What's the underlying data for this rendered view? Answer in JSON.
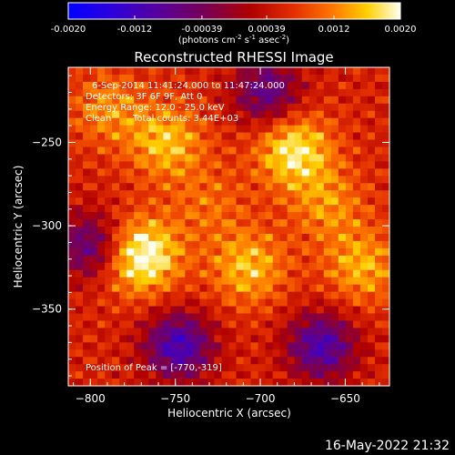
{
  "chart_data": {
    "type": "heatmap",
    "title": "Reconstructed RHESSI Image",
    "xlabel": "Heliocentric X (arcsec)",
    "ylabel": "Heliocentric Y (arcsec)",
    "xlim": [
      -813,
      -624
    ],
    "ylim": [
      -396,
      -205
    ],
    "xticks": [
      -800,
      -750,
      -700,
      -650
    ],
    "yticks": [
      -250,
      -300,
      -350
    ],
    "colorbar": {
      "min": -0.002,
      "max": 0.002,
      "ticks": [
        "-0.0020",
        "-0.0012",
        "-0.00039",
        "0.00039",
        "0.0012",
        "0.0020"
      ],
      "tick_values": [
        -0.002,
        -0.0012,
        -0.00039,
        0.00039,
        0.0012,
        0.002
      ],
      "label_prefix": "(photons cm",
      "label_exp1": "-2",
      "label_mid1": " s",
      "label_exp2": "-1",
      "label_mid2": " asec",
      "label_exp3": "-2",
      "label_suffix": ")",
      "colormap": "rainbow-like: blue-purple-red-orange-yellow-white"
    },
    "annotations": {
      "time_range": "6-Sep-2014 11:41:24.000 to 11:47:24.000",
      "detectors": "Detectors: 3F 6F 9F, Att 0",
      "energy_range": "Energy Range: 12.0 - 25.0 keV",
      "clean_label": "Clean",
      "total_counts": "Total counts: 3.44E+03",
      "peak_position": "Position of Peak = [-770,-319]"
    },
    "peak": {
      "x": -770,
      "y": -319
    },
    "hot_regions": [
      {
        "x": -770,
        "y": -318,
        "value": 0.002
      },
      {
        "x": -680,
        "y": -255,
        "value": 0.0017
      },
      {
        "x": -755,
        "y": -250,
        "value": 0.0014
      },
      {
        "x": -707,
        "y": -325,
        "value": 0.0014
      },
      {
        "x": -640,
        "y": -325,
        "value": 0.0013
      },
      {
        "x": -790,
        "y": -230,
        "value": 0.0011
      },
      {
        "x": -660,
        "y": -288,
        "value": 0.0011
      },
      {
        "x": -730,
        "y": -287,
        "value": 0.0009
      }
    ],
    "cold_regions": [
      {
        "x": -748,
        "y": -372,
        "value": -0.0008
      },
      {
        "x": -664,
        "y": -372,
        "value": -0.0007
      },
      {
        "x": -696,
        "y": -220,
        "value": -0.0004
      },
      {
        "x": -800,
        "y": -312,
        "value": -0.0004
      }
    ]
  },
  "footer": {
    "timestamp": "16-May-2022 21:32"
  }
}
